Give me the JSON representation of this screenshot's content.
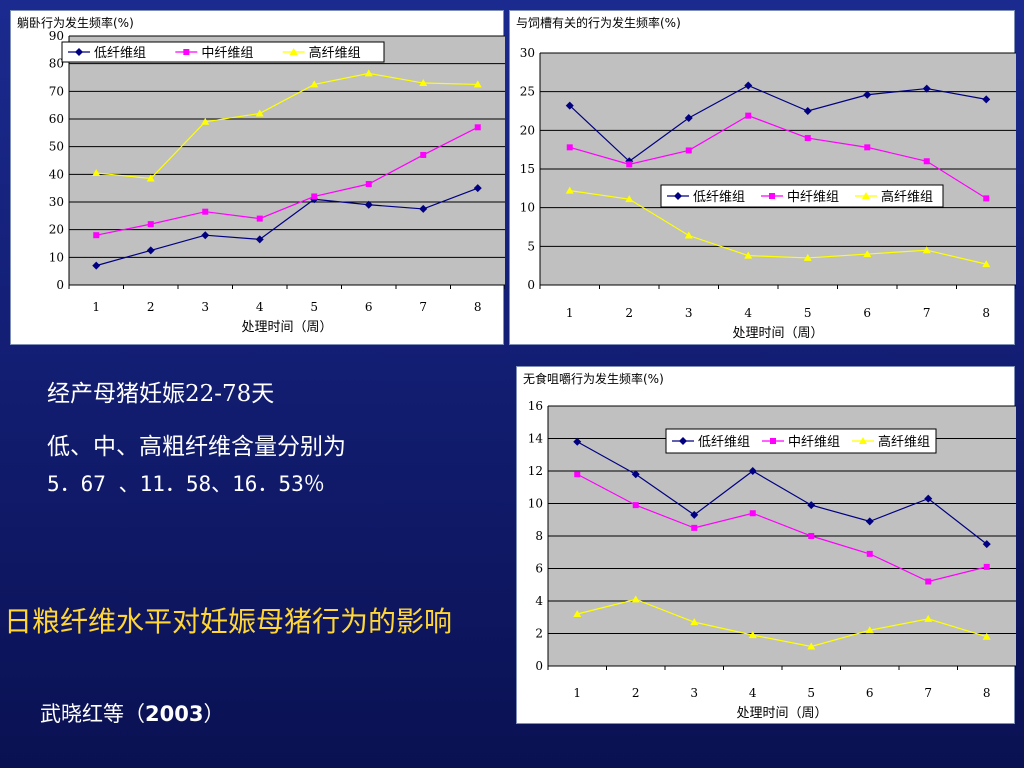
{
  "slide": {
    "info_line1": "经产母猪妊娠22-78天",
    "info_line2": "低、中、高粗纤维含量分别为",
    "info_line3": "5．67 、11．58、16．53％",
    "headline": "日粮纤维水平对妊娠母猪行为的影响",
    "citation_author": "武晓红等（",
    "citation_year": "2003",
    "citation_close": "）"
  },
  "colors": {
    "plot_bg": "#c0c0c0",
    "low": "#000080",
    "mid": "#ff00ff",
    "high": "#ffff00"
  },
  "chart_data": [
    {
      "type": "line",
      "title": "躺卧行为发生频率(%)",
      "xlabel": "处理时间（周）",
      "ylabel": "",
      "categories": [
        "1",
        "2",
        "3",
        "4",
        "5",
        "6",
        "7",
        "8"
      ],
      "ylim": [
        0,
        90
      ],
      "ystep": 10,
      "grid": true,
      "legend": "top",
      "series": [
        {
          "name": "低纤维组",
          "marker": "diamond",
          "values": [
            7,
            12.5,
            18,
            16.5,
            31,
            29,
            27.5,
            35
          ]
        },
        {
          "name": "中纤维组",
          "marker": "square",
          "values": [
            18,
            22,
            26.5,
            24,
            32,
            36.5,
            47,
            57
          ]
        },
        {
          "name": "高纤维组",
          "marker": "triangle",
          "values": [
            40.5,
            38.5,
            59,
            62,
            72.5,
            76.5,
            73,
            72.5
          ]
        }
      ]
    },
    {
      "type": "line",
      "title": "与饲槽有关的行为发生频率(%)",
      "xlabel": "处理时间（周）",
      "ylabel": "",
      "categories": [
        "1",
        "2",
        "3",
        "4",
        "5",
        "6",
        "7",
        "8"
      ],
      "ylim": [
        0,
        30
      ],
      "ystep": 5,
      "grid": true,
      "legend": "middle",
      "series": [
        {
          "name": "低纤维组",
          "marker": "diamond",
          "values": [
            23.2,
            16,
            21.6,
            25.8,
            22.5,
            24.6,
            25.4,
            24
          ]
        },
        {
          "name": "中纤维组",
          "marker": "square",
          "values": [
            17.8,
            15.6,
            17.4,
            21.9,
            19,
            17.8,
            16,
            11.2
          ]
        },
        {
          "name": "高纤维组",
          "marker": "triangle",
          "values": [
            12.2,
            11.1,
            6.4,
            3.8,
            3.5,
            4,
            4.5,
            2.7
          ]
        }
      ]
    },
    {
      "type": "line",
      "title": "无食咀嚼行为发生频率(%)",
      "xlabel": "处理时间（周）",
      "ylabel": "",
      "categories": [
        "1",
        "2",
        "3",
        "4",
        "5",
        "6",
        "7",
        "8"
      ],
      "ylim": [
        0,
        16
      ],
      "ystep": 2,
      "grid": true,
      "legend": "top-right",
      "series": [
        {
          "name": "低纤维组",
          "marker": "diamond",
          "values": [
            13.8,
            11.8,
            9.3,
            12,
            9.9,
            8.9,
            10.3,
            7.5
          ]
        },
        {
          "name": "中纤维组",
          "marker": "square",
          "values": [
            11.8,
            9.9,
            8.5,
            9.4,
            8,
            6.9,
            5.2,
            6.1
          ]
        },
        {
          "name": "高纤维组",
          "marker": "triangle",
          "values": [
            3.2,
            4.1,
            2.7,
            1.9,
            1.2,
            2.2,
            2.9,
            1.8
          ]
        }
      ]
    }
  ]
}
